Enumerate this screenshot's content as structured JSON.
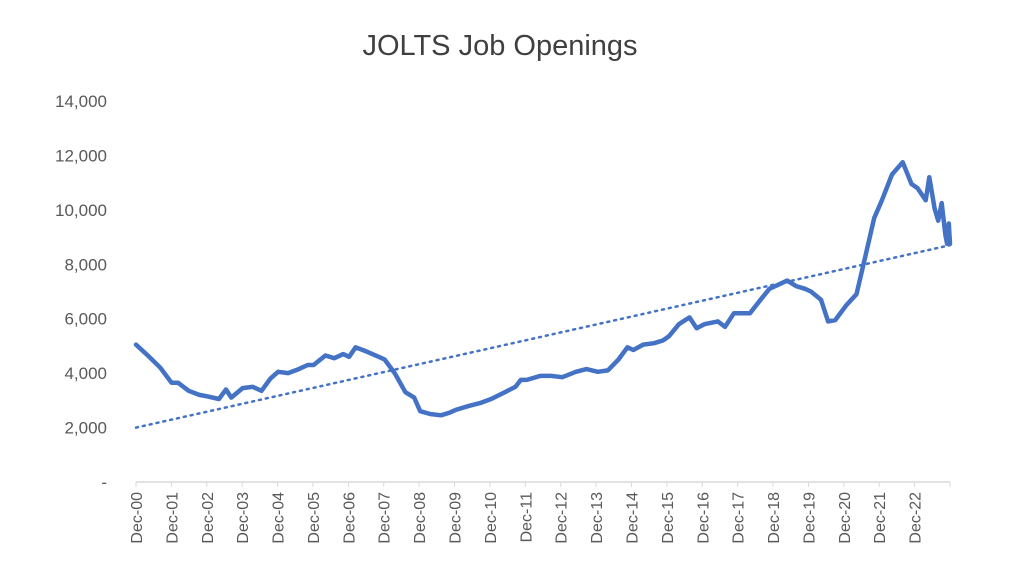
{
  "chart_data": {
    "type": "line",
    "title": "JOLTS Job Openings",
    "xlabel": "",
    "ylabel": "",
    "ylim": [
      0,
      14000
    ],
    "y_ticks": [
      {
        "value": 0,
        "label": "-"
      },
      {
        "value": 2000,
        "label": "2,000"
      },
      {
        "value": 4000,
        "label": "4,000"
      },
      {
        "value": 6000,
        "label": "6,000"
      },
      {
        "value": 8000,
        "label": "8,000"
      },
      {
        "value": 10000,
        "label": "10,000"
      },
      {
        "value": 12000,
        "label": "12,000"
      },
      {
        "value": 14000,
        "label": "14,000"
      }
    ],
    "x_ticks": [
      "Dec-00",
      "Dec-01",
      "Dec-02",
      "Dec-03",
      "Dec-04",
      "Dec-05",
      "Dec-06",
      "Dec-07",
      "Dec-08",
      "Dec-09",
      "Dec-10",
      "Dec-11",
      "Dec-12",
      "Dec-13",
      "Dec-14",
      "Dec-15",
      "Dec-16",
      "Dec-17",
      "Dec-18",
      "Dec-19",
      "Dec-20",
      "Dec-21",
      "Dec-22"
    ],
    "x_domain": [
      2000.917,
      2023.833
    ],
    "grid": false,
    "legend": "none",
    "colors": {
      "series": "#4472c4",
      "trend": "#4472c4",
      "axis": "#d9d9d9",
      "text": "#595959"
    },
    "series": [
      {
        "style": "solid",
        "points": [
          [
            2000.917,
            5050
          ],
          [
            2001.25,
            4650
          ],
          [
            2001.6,
            4200
          ],
          [
            2001.917,
            3650
          ],
          [
            2002.1,
            3650
          ],
          [
            2002.4,
            3350
          ],
          [
            2002.7,
            3200
          ],
          [
            2002.917,
            3150
          ],
          [
            2003.25,
            3050
          ],
          [
            2003.45,
            3400
          ],
          [
            2003.6,
            3100
          ],
          [
            2003.917,
            3450
          ],
          [
            2004.2,
            3500
          ],
          [
            2004.45,
            3350
          ],
          [
            2004.7,
            3800
          ],
          [
            2004.917,
            4050
          ],
          [
            2005.2,
            4000
          ],
          [
            2005.5,
            4150
          ],
          [
            2005.75,
            4300
          ],
          [
            2005.917,
            4300
          ],
          [
            2006.25,
            4650
          ],
          [
            2006.5,
            4550
          ],
          [
            2006.75,
            4700
          ],
          [
            2006.917,
            4600
          ],
          [
            2007.1,
            4950
          ],
          [
            2007.4,
            4800
          ],
          [
            2007.75,
            4600
          ],
          [
            2007.917,
            4500
          ],
          [
            2008.2,
            4000
          ],
          [
            2008.5,
            3300
          ],
          [
            2008.75,
            3100
          ],
          [
            2008.917,
            2600
          ],
          [
            2009.2,
            2500
          ],
          [
            2009.5,
            2450
          ],
          [
            2009.75,
            2550
          ],
          [
            2009.917,
            2650
          ],
          [
            2010.3,
            2800
          ],
          [
            2010.6,
            2900
          ],
          [
            2010.917,
            3050
          ],
          [
            2011.3,
            3300
          ],
          [
            2011.6,
            3500
          ],
          [
            2011.75,
            3750
          ],
          [
            2011.917,
            3750
          ],
          [
            2012.3,
            3900
          ],
          [
            2012.6,
            3900
          ],
          [
            2012.917,
            3850
          ],
          [
            2013.3,
            4050
          ],
          [
            2013.6,
            4150
          ],
          [
            2013.917,
            4050
          ],
          [
            2014.2,
            4100
          ],
          [
            2014.5,
            4500
          ],
          [
            2014.75,
            4950
          ],
          [
            2014.917,
            4850
          ],
          [
            2015.2,
            5050
          ],
          [
            2015.5,
            5100
          ],
          [
            2015.75,
            5200
          ],
          [
            2015.917,
            5350
          ],
          [
            2016.2,
            5800
          ],
          [
            2016.5,
            6050
          ],
          [
            2016.7,
            5650
          ],
          [
            2016.917,
            5800
          ],
          [
            2017.3,
            5900
          ],
          [
            2017.5,
            5700
          ],
          [
            2017.75,
            6200
          ],
          [
            2017.917,
            6200
          ],
          [
            2018.2,
            6200
          ],
          [
            2018.5,
            6700
          ],
          [
            2018.75,
            7100
          ],
          [
            2018.917,
            7200
          ],
          [
            2019.25,
            7400
          ],
          [
            2019.5,
            7200
          ],
          [
            2019.75,
            7100
          ],
          [
            2019.917,
            7000
          ],
          [
            2020.2,
            6700
          ],
          [
            2020.4,
            5900
          ],
          [
            2020.6,
            5950
          ],
          [
            2020.917,
            6500
          ],
          [
            2021.2,
            6900
          ],
          [
            2021.45,
            8300
          ],
          [
            2021.7,
            9700
          ],
          [
            2021.917,
            10350
          ],
          [
            2022.2,
            11300
          ],
          [
            2022.5,
            11750
          ],
          [
            2022.75,
            10950
          ],
          [
            2022.917,
            10800
          ],
          [
            2023.15,
            10350
          ],
          [
            2023.25,
            11200
          ],
          [
            2023.4,
            10050
          ],
          [
            2023.5,
            9600
          ],
          [
            2023.6,
            10250
          ],
          [
            2023.7,
            9100
          ],
          [
            2023.75,
            8750
          ],
          [
            2023.8,
            9500
          ],
          [
            2023.833,
            8750
          ]
        ]
      },
      {
        "style": "dotted-trendline",
        "points": [
          [
            2000.917,
            2000
          ],
          [
            2023.833,
            8700
          ]
        ]
      }
    ]
  }
}
